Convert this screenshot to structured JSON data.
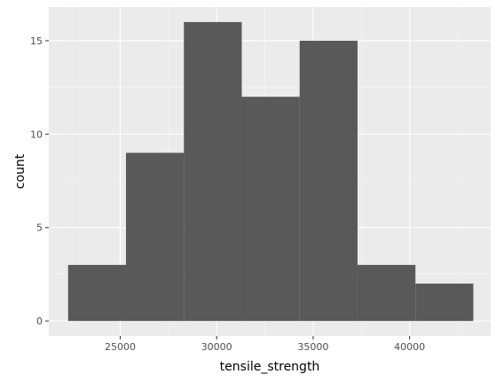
{
  "chart_data": {
    "type": "bar",
    "subtype": "histogram",
    "xlabel": "tensile_strength",
    "ylabel": "count",
    "xlim": [
      21300,
      44200
    ],
    "ylim": [
      -0.8,
      16.8
    ],
    "x_ticks": [
      25000,
      30000,
      35000,
      40000
    ],
    "y_ticks": [
      0,
      5,
      10,
      15
    ],
    "bins": [
      {
        "x0": 22300,
        "x1": 25300,
        "count": 3
      },
      {
        "x0": 25300,
        "x1": 28300,
        "count": 9
      },
      {
        "x0": 28300,
        "x1": 31300,
        "count": 16
      },
      {
        "x0": 31300,
        "x1": 34300,
        "count": 12
      },
      {
        "x0": 34300,
        "x1": 37300,
        "count": 15
      },
      {
        "x0": 37300,
        "x1": 40300,
        "count": 3
      },
      {
        "x0": 40300,
        "x1": 43300,
        "count": 2
      }
    ],
    "grid": true,
    "colors": {
      "panel_background": "#ebebeb",
      "grid_major": "#ffffff",
      "grid_minor": "#f5f5f5",
      "bar_fill": "#595959",
      "tick_text": "#4d4d4d"
    }
  }
}
